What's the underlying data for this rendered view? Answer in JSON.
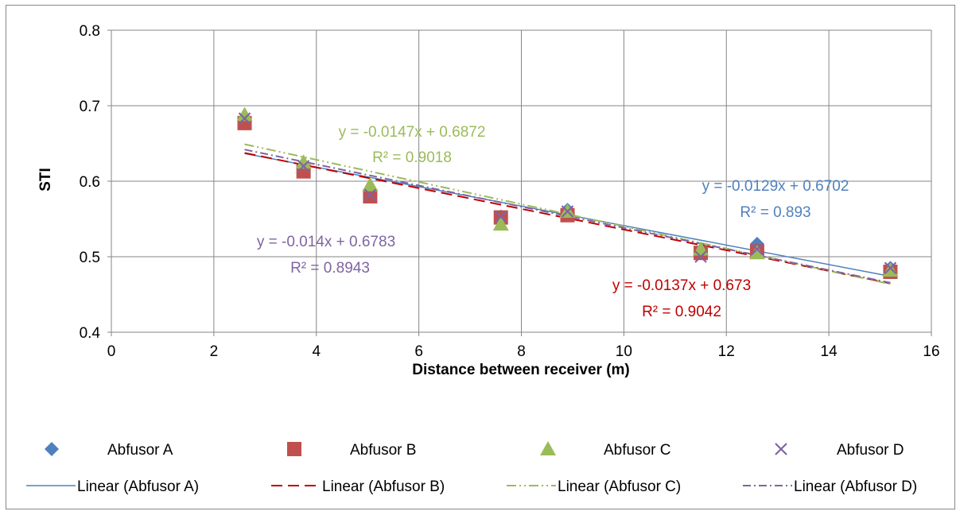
{
  "chart_data": {
    "type": "scatter",
    "title": "",
    "xlabel": "Distance between receiver (m)",
    "ylabel": "STI",
    "xlim": [
      0,
      16
    ],
    "ylim": [
      0.4,
      0.8
    ],
    "x_ticks": [
      0,
      2,
      4,
      6,
      8,
      10,
      12,
      14,
      16
    ],
    "y_ticks": [
      0.4,
      0.5,
      0.6,
      0.7,
      0.8
    ],
    "x_tick_labels": [
      "0",
      "2",
      "4",
      "6",
      "8",
      "10",
      "12",
      "14",
      "16"
    ],
    "y_tick_labels": [
      "0.4",
      "0.5",
      "0.6",
      "0.7",
      "0.8"
    ],
    "grid": true,
    "legend_position": "bottom",
    "x": [
      2.6,
      3.75,
      5.05,
      7.6,
      8.9,
      11.5,
      12.6,
      15.2
    ],
    "series": [
      {
        "name": "Abfusor A",
        "marker": "diamond",
        "color": "#4f81bd",
        "values": [
          0.68,
          0.617,
          0.585,
          0.553,
          0.562,
          0.507,
          0.517,
          0.485
        ]
      },
      {
        "name": "Abfusor B",
        "marker": "square",
        "color": "#c0504d",
        "values": [
          0.677,
          0.613,
          0.58,
          0.552,
          0.555,
          0.505,
          0.507,
          0.48
        ]
      },
      {
        "name": "Abfusor C",
        "marker": "triangle",
        "color": "#9bbb59",
        "values": [
          0.688,
          0.625,
          0.595,
          0.543,
          0.56,
          0.51,
          0.505,
          0.482
        ]
      },
      {
        "name": "Abfusor D",
        "marker": "x",
        "color": "#8064a2",
        "values": [
          0.683,
          0.62,
          0.582,
          0.553,
          0.56,
          0.5,
          0.51,
          0.485
        ]
      }
    ],
    "trendlines": [
      {
        "name": "Linear (Abfusor A)",
        "color": "#4f81bd",
        "dash": "solid",
        "slope": -0.0129,
        "intercept": 0.6702,
        "equation": "y = -0.0129x + 0.6702",
        "r2": "R² = 0.893"
      },
      {
        "name": "Linear (Abfusor B)",
        "color": "#c00000",
        "dash": "dash",
        "slope": -0.0137,
        "intercept": 0.673,
        "equation": "y = -0.0137x + 0.673",
        "r2": "R² = 0.9042"
      },
      {
        "name": "Linear (Abfusor C)",
        "color": "#9bbb59",
        "dash": "dashdotdot",
        "slope": -0.0147,
        "intercept": 0.6872,
        "equation": "y = -0.0147x + 0.6872",
        "r2": "R² = 0.9018"
      },
      {
        "name": "Linear (Abfusor D)",
        "color": "#8064a2",
        "dash": "dashdot",
        "slope": -0.014,
        "intercept": 0.6783,
        "equation": "y = -0.014x + 0.6783",
        "r2": "R² = 0.8943"
      }
    ]
  }
}
